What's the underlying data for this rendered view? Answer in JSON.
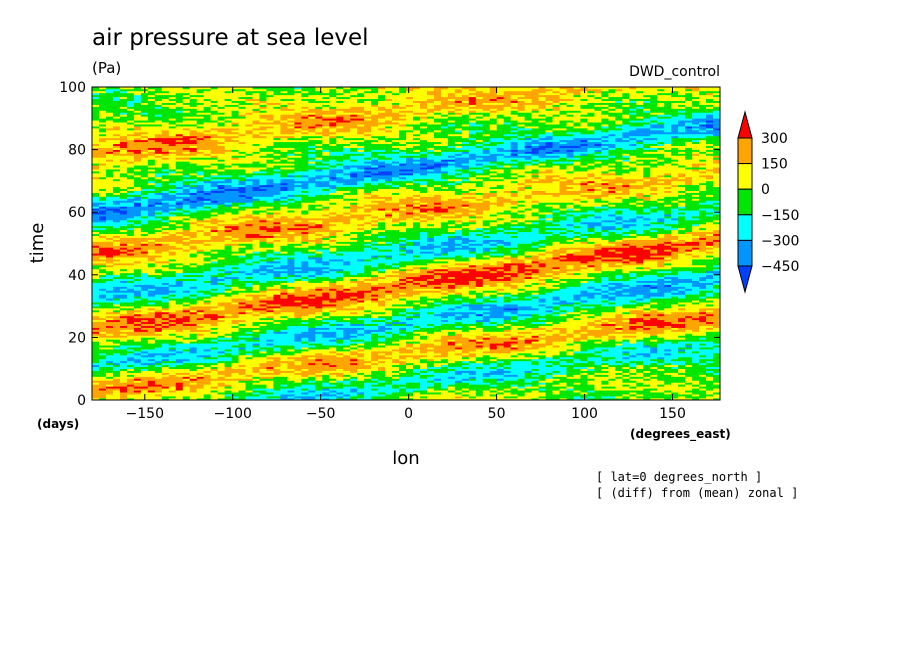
{
  "chart_data": {
    "type": "heatmap",
    "title": "air pressure at sea level",
    "units": "(Pa)",
    "label_right": "DWD_control",
    "xlabel": "lon",
    "ylabel": "time",
    "x_units": "(degrees_east)",
    "y_units": "(days)",
    "xlim": [
      -180,
      177
    ],
    "ylim": [
      0,
      100
    ],
    "x_ticks": [
      -150,
      -100,
      -50,
      0,
      50,
      100,
      150
    ],
    "x_tick_labels": [
      "−150",
      "−100",
      "−50",
      "0",
      "50",
      "100",
      "150"
    ],
    "y_ticks": [
      0,
      20,
      40,
      60,
      80,
      100
    ],
    "y_tick_labels": [
      "0",
      "20",
      "40",
      "60",
      "80",
      "100"
    ],
    "notes": [
      "[ lat=0 degrees_north ]",
      "[ (diff) from (mean) zonal ]"
    ],
    "colorbar": {
      "levels": [
        300,
        150,
        0,
        -150,
        -300,
        -450
      ],
      "level_labels": [
        "300",
        "150",
        "0",
        "−150",
        "−300",
        "−450"
      ],
      "colors": [
        "#ff0000",
        "#ffa500",
        "#ffff00",
        "#00e600",
        "#00ffff",
        "#0095ff",
        "#0040ff"
      ],
      "extend": "both"
    },
    "anomaly_bands": [
      {
        "label": "negative",
        "value": -250,
        "t0": 5,
        "slope": 0.075
      },
      {
        "label": "negative",
        "value": -300,
        "t0": 25,
        "slope": 0.08
      },
      {
        "label": "negative",
        "value": -250,
        "t0": 47,
        "slope": 0.075
      },
      {
        "label": "negative",
        "value": -400,
        "t0": 74,
        "slope": 0.08
      },
      {
        "label": "positive",
        "value": 250,
        "t0": 15,
        "slope": 0.07
      },
      {
        "label": "positive",
        "value": 300,
        "t0": 37,
        "slope": 0.08
      },
      {
        "label": "positive",
        "value": 200,
        "t0": 60,
        "slope": 0.07
      },
      {
        "label": "positive",
        "value": 200,
        "t0": 92,
        "slope": 0.075
      }
    ]
  }
}
